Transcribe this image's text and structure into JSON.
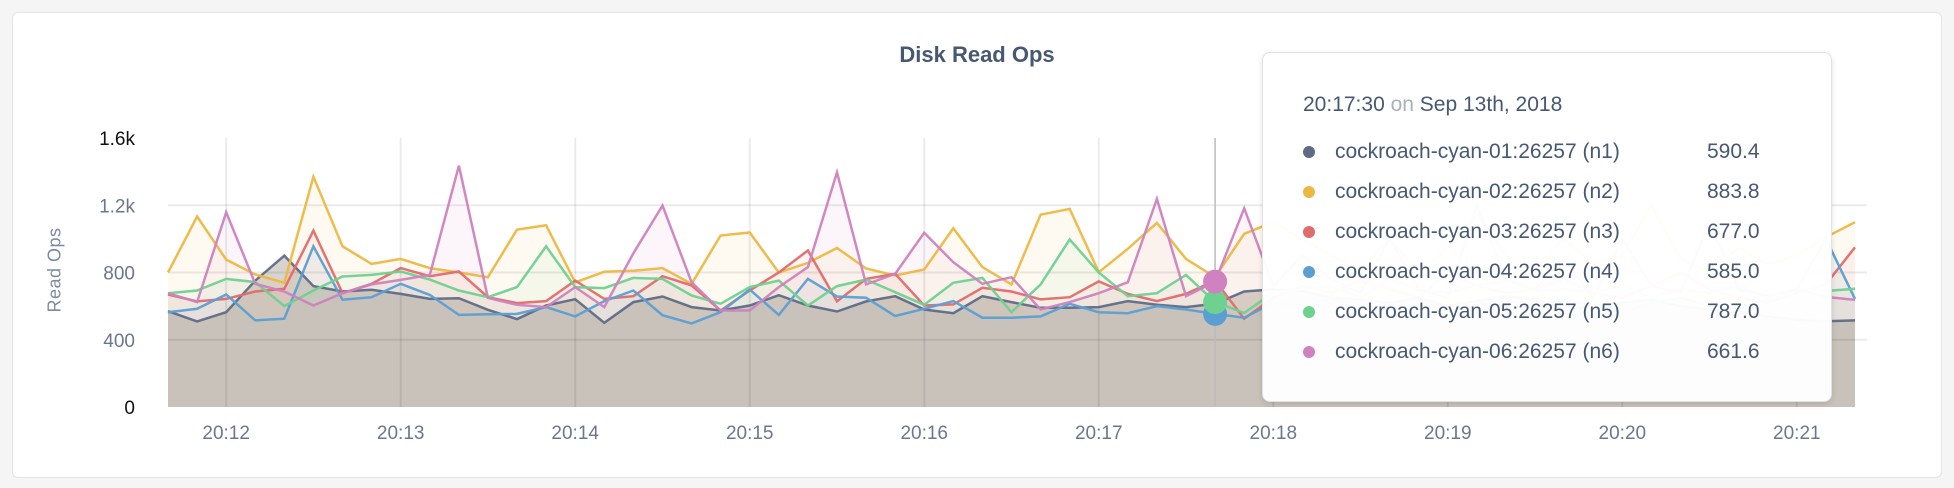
{
  "chart_data": {
    "type": "area",
    "title": "Disk Read Ops",
    "ylabel": "Read Ops",
    "xlabel": "",
    "ylim": [
      0,
      1600
    ],
    "y_ticks": [
      "0",
      "400",
      "800",
      "1.2k",
      "1.6k"
    ],
    "y_tick_values": [
      0,
      400,
      800,
      1200,
      1600
    ],
    "x_ticks": [
      "20:12",
      "20:13",
      "20:14",
      "20:15",
      "20:16",
      "20:17",
      "20:18",
      "20:19",
      "20:20",
      "20:21"
    ],
    "grid": true,
    "x": [
      "20:11:40",
      "20:11:50",
      "20:12:00",
      "20:12:10",
      "20:12:20",
      "20:12:30",
      "20:12:40",
      "20:12:50",
      "20:13:00",
      "20:13:10",
      "20:13:20",
      "20:13:30",
      "20:13:40",
      "20:13:50",
      "20:14:00",
      "20:14:10",
      "20:14:20",
      "20:14:30",
      "20:14:40",
      "20:14:50",
      "20:15:00",
      "20:15:10",
      "20:15:20",
      "20:15:30",
      "20:15:40",
      "20:15:50",
      "20:16:00",
      "20:16:10",
      "20:16:20",
      "20:16:30",
      "20:16:40",
      "20:16:50",
      "20:17:00",
      "20:17:10",
      "20:17:20",
      "20:17:30",
      "20:17:40",
      "20:17:50",
      "20:18:00",
      "20:18:10",
      "20:18:20",
      "20:18:30",
      "20:18:40",
      "20:18:50",
      "20:19:00",
      "20:19:10",
      "20:19:20",
      "20:19:30",
      "20:19:40",
      "20:19:50",
      "20:20:00",
      "20:20:10",
      "20:20:20",
      "20:20:30",
      "20:20:40",
      "20:20:50",
      "20:21:00",
      "20:21:10",
      "20:21:20"
    ],
    "series": [
      {
        "name": "cockroach-cyan-01:26257 (n1)",
        "color": "#5f6b86",
        "values": [
          570,
          509,
          564,
          752,
          900,
          719,
          687,
          697,
          673,
          643,
          647,
          578,
          523,
          604,
          641,
          501,
          624,
          657,
          594,
          574,
          604,
          665,
          604,
          568,
          628,
          659,
          580,
          558,
          659,
          624,
          590,
          590,
          594,
          630,
          608,
          594,
          614,
          687,
          700,
          690,
          650,
          640,
          620,
          650,
          600,
          630,
          660,
          640,
          580,
          600,
          620,
          640,
          600,
          580,
          560,
          540,
          520,
          510,
          515
        ]
      },
      {
        "name": "cockroach-cyan-02:26257 (n2)",
        "color": "#edb842",
        "values": [
          800,
          1133,
          877,
          788,
          739,
          1370,
          956,
          851,
          881,
          826,
          800,
          772,
          1055,
          1081,
          742,
          804,
          810,
          826,
          733,
          1020,
          1038,
          800,
          857,
          946,
          824,
          782,
          818,
          1063,
          832,
          729,
          1144,
          1178,
          802,
          941,
          1095,
          881,
          772,
          1030,
          1100,
          1000,
          900,
          820,
          1000,
          800,
          950,
          1150,
          900,
          820,
          1000,
          850,
          900,
          1200,
          880,
          800,
          950,
          850,
          900,
          1010,
          1099
        ]
      },
      {
        "name": "cockroach-cyan-03:26257 (n3)",
        "color": "#e06c6c",
        "values": [
          669,
          628,
          643,
          687,
          703,
          1049,
          677,
          733,
          826,
          778,
          806,
          653,
          618,
          630,
          752,
          643,
          659,
          778,
          723,
          574,
          693,
          800,
          931,
          628,
          762,
          792,
          604,
          610,
          709,
          687,
          640,
          653,
          747,
          673,
          630,
          673,
          752,
          525,
          650,
          720,
          680,
          750,
          700,
          650,
          800,
          720,
          680,
          700,
          760,
          680,
          650,
          720,
          800,
          700,
          650,
          620,
          680,
          730,
          950
        ]
      },
      {
        "name": "cockroach-cyan-04:26257 (n4)",
        "color": "#5b9fd2",
        "values": [
          564,
          584,
          669,
          515,
          525,
          956,
          638,
          653,
          733,
          667,
          548,
          552,
          554,
          594,
          539,
          630,
          693,
          546,
          497,
          564,
          699,
          548,
          762,
          657,
          650,
          541,
          584,
          630,
          531,
          531,
          539,
          614,
          564,
          558,
          600,
          580,
          554,
          531,
          620,
          600,
          650,
          580,
          600,
          640,
          560,
          620,
          600,
          580,
          640,
          600,
          560,
          620,
          650,
          600,
          580,
          640,
          700,
          1000,
          643
        ]
      },
      {
        "name": "cockroach-cyan-05:26257 (n5)",
        "color": "#6fd18f",
        "values": [
          677,
          693,
          762,
          743,
          600,
          693,
          776,
          786,
          806,
          758,
          693,
          653,
          713,
          956,
          713,
          707,
          768,
          762,
          663,
          614,
          713,
          752,
          604,
          719,
          758,
          683,
          608,
          739,
          768,
          564,
          729,
          996,
          800,
          659,
          677,
          786,
          624,
          560,
          680,
          700,
          720,
          650,
          760,
          700,
          680,
          720,
          750,
          690,
          700,
          680,
          720,
          650,
          700,
          680,
          720,
          650,
          700,
          690,
          703
        ]
      },
      {
        "name": "cockroach-cyan-06:26257 (n6)",
        "color": "#cf82bf",
        "values": [
          677,
          624,
          1158,
          733,
          687,
          604,
          677,
          729,
          756,
          786,
          1435,
          649,
          608,
          594,
          713,
          594,
          915,
          1198,
          742,
          574,
          574,
          713,
          832,
          1396,
          729,
          792,
          1036,
          861,
          733,
          772,
          580,
          624,
          677,
          742,
          1238,
          659,
          746,
          1182,
          720,
          900,
          760,
          680,
          1000,
          700,
          650,
          1200,
          760,
          700,
          880,
          650,
          1000,
          720,
          680,
          1100,
          700,
          660,
          700,
          655,
          637
        ]
      }
    ]
  },
  "tooltip": {
    "time": "20:17:30",
    "on": "on",
    "date": "Sep 13th, 2018",
    "rows": [
      {
        "name": "cockroach-cyan-01:26257 (n1)",
        "value": "590.4",
        "color": "#5f6b86"
      },
      {
        "name": "cockroach-cyan-02:26257 (n2)",
        "value": "883.8",
        "color": "#edb842"
      },
      {
        "name": "cockroach-cyan-03:26257 (n3)",
        "value": "677.0",
        "color": "#e06c6c"
      },
      {
        "name": "cockroach-cyan-04:26257 (n4)",
        "value": "585.0",
        "color": "#5b9fd2"
      },
      {
        "name": "cockroach-cyan-05:26257 (n5)",
        "value": "787.0",
        "color": "#6fd18f"
      },
      {
        "name": "cockroach-cyan-06:26257 (n6)",
        "value": "661.6",
        "color": "#cf82bf"
      }
    ]
  }
}
